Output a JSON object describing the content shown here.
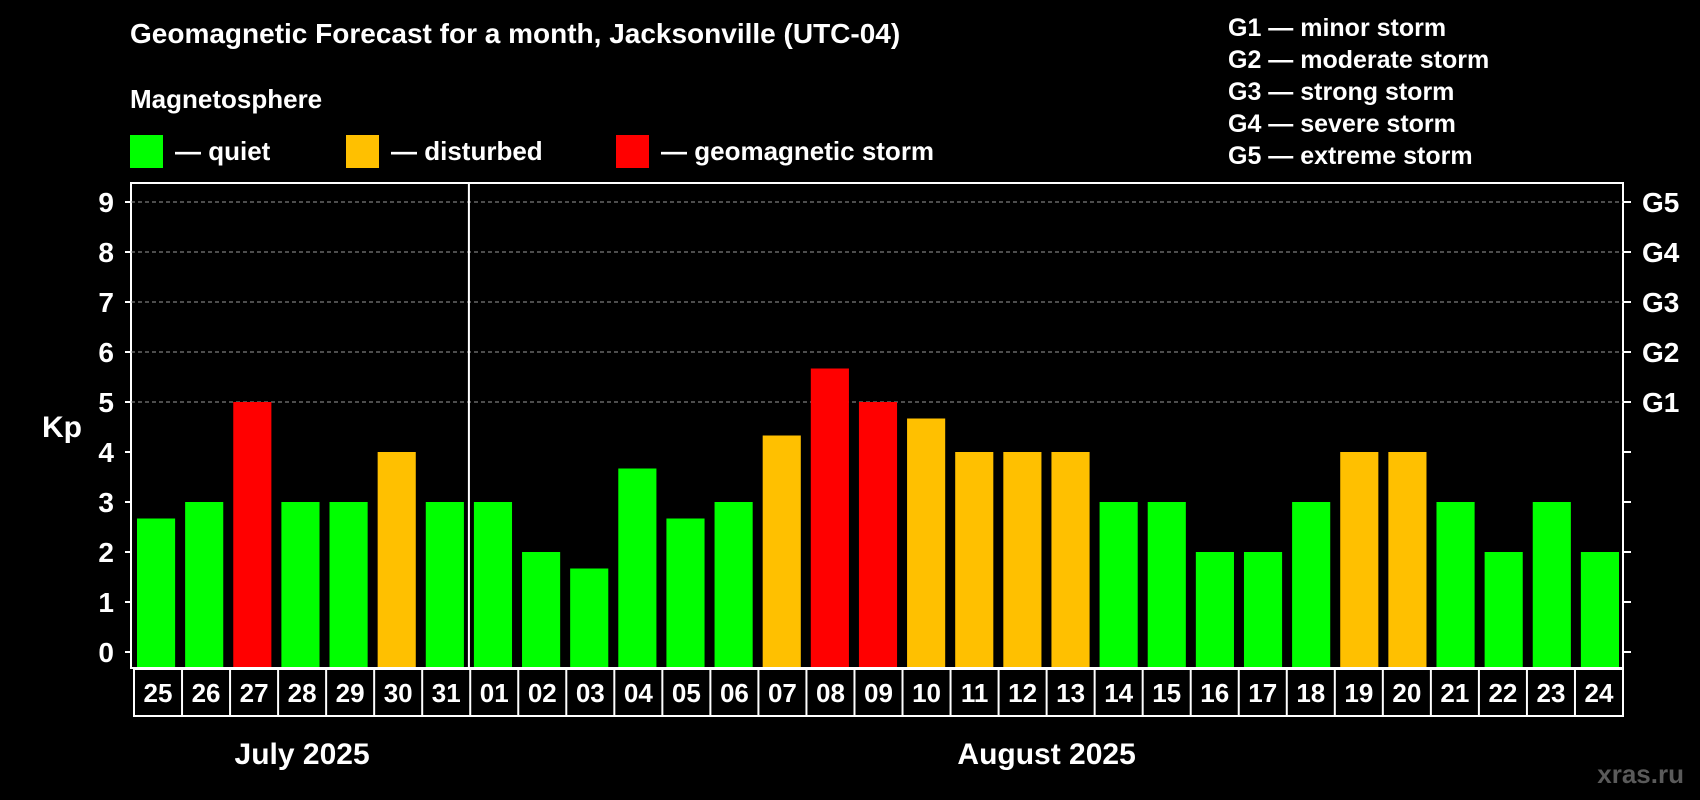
{
  "title": "Geomagnetic Forecast for a month, Jacksonville (UTC-04)",
  "subtitle": "Magnetosphere",
  "legend": [
    {
      "label": "— quiet",
      "color": "#00ff00"
    },
    {
      "label": "— disturbed",
      "color": "#ffc000"
    },
    {
      "label": "— geomagnetic storm",
      "color": "#ff0000"
    }
  ],
  "g_legend": [
    "G1 — minor storm",
    "G2 — moderate storm",
    "G3 — strong storm",
    "G4 — severe storm",
    "G5 — extreme storm"
  ],
  "watermark": "xras.ru",
  "chart_data": {
    "type": "bar",
    "ylabel": "Kp",
    "ylim": [
      0,
      9
    ],
    "yticks": [
      "0",
      "1",
      "2",
      "3",
      "4",
      "5",
      "6",
      "7",
      "8",
      "9"
    ],
    "right_axis_labels": [
      {
        "kp": 5,
        "label": "G1"
      },
      {
        "kp": 6,
        "label": "G2"
      },
      {
        "kp": 7,
        "label": "G3"
      },
      {
        "kp": 8,
        "label": "G4"
      },
      {
        "kp": 9,
        "label": "G5"
      }
    ],
    "grid": "dashed horizontal lines at Kp 5-9",
    "months": [
      {
        "label": "July 2025",
        "days": 7
      },
      {
        "label": "August 2025",
        "days": 24
      }
    ],
    "categories": [
      "25",
      "26",
      "27",
      "28",
      "29",
      "30",
      "31",
      "01",
      "02",
      "03",
      "04",
      "05",
      "06",
      "07",
      "08",
      "09",
      "10",
      "11",
      "12",
      "13",
      "14",
      "15",
      "16",
      "17",
      "18",
      "19",
      "20",
      "21",
      "22",
      "23",
      "24"
    ],
    "values": [
      2.67,
      3,
      5,
      3,
      3,
      4,
      3,
      3,
      2,
      1.67,
      3.67,
      2.67,
      3,
      4.33,
      5.67,
      5,
      4.67,
      4,
      4,
      4,
      3,
      3,
      2,
      2,
      3,
      4,
      4,
      3,
      2,
      3,
      2
    ],
    "status": [
      "quiet",
      "quiet",
      "storm",
      "quiet",
      "quiet",
      "disturbed",
      "quiet",
      "quiet",
      "quiet",
      "quiet",
      "quiet",
      "quiet",
      "quiet",
      "disturbed",
      "storm",
      "storm",
      "disturbed",
      "disturbed",
      "disturbed",
      "disturbed",
      "quiet",
      "quiet",
      "quiet",
      "quiet",
      "quiet",
      "disturbed",
      "disturbed",
      "quiet",
      "quiet",
      "quiet",
      "quiet"
    ],
    "colors": {
      "quiet": "#00ff00",
      "disturbed": "#ffc000",
      "storm": "#ff0000"
    }
  }
}
